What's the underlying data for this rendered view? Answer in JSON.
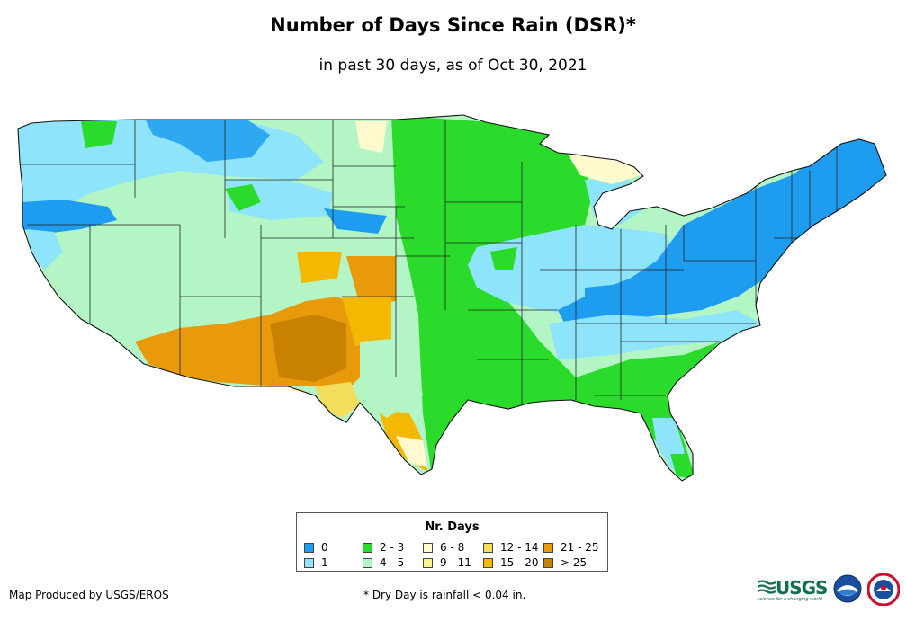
{
  "title": "Number of Days Since Rain (DSR)*",
  "subtitle": "in past 30 days, as of Oct 30, 2021",
  "legend": {
    "title": "Nr. Days",
    "items": [
      {
        "label": "0",
        "color": "#1e9df0"
      },
      {
        "label": "1",
        "color": "#8ee4fa"
      },
      {
        "label": "2 - 3",
        "color": "#2bdb2b"
      },
      {
        "label": "4 - 5",
        "color": "#b3f5c4"
      },
      {
        "label": "6 - 8",
        "color": "#fffacd"
      },
      {
        "label": "9 - 11",
        "color": "#fdf38e"
      },
      {
        "label": "12 - 14",
        "color": "#f5dd5c"
      },
      {
        "label": "15 - 20",
        "color": "#f5b800"
      },
      {
        "label": "21 - 25",
        "color": "#e89a0a"
      },
      {
        "label": "> 25",
        "color": "#c88200"
      }
    ]
  },
  "credit": "Map Produced by USGS/EROS",
  "footnote": "* Dry Day is rainfall < 0.04 in.",
  "logos": {
    "usgs": "USGS",
    "usgs_tagline": "science for a changing world"
  }
}
